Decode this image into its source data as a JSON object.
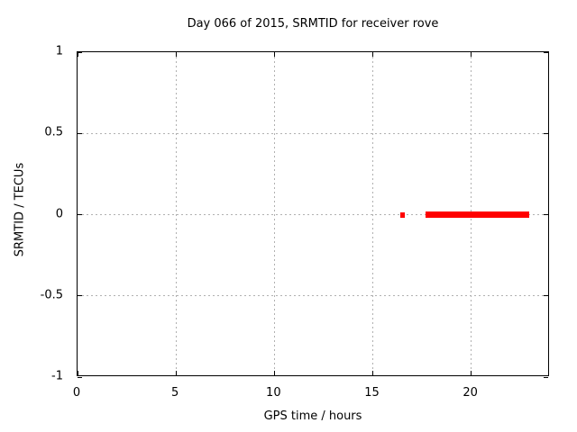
{
  "window": {
    "background": "#ffffff"
  },
  "colors": {
    "data": "#ff0000",
    "grid": "#b0b0b0",
    "axis": "#000000",
    "text": "#000000",
    "background": "#ffffff"
  },
  "chart_data": {
    "type": "scatter",
    "title": "Day 066 of 2015, SRMTID for receiver rove",
    "xlabel": "GPS time / hours",
    "ylabel": "SRMTID / TECUs",
    "xlim": [
      0,
      24
    ],
    "ylim": [
      -1,
      1
    ],
    "grid": true,
    "legend": "none",
    "xticks": [
      {
        "value": 0,
        "label": "0"
      },
      {
        "value": 5,
        "label": "5"
      },
      {
        "value": 10,
        "label": "10"
      },
      {
        "value": 15,
        "label": "15"
      },
      {
        "value": 20,
        "label": "20"
      }
    ],
    "yticks": [
      {
        "value": 1,
        "label": "1"
      },
      {
        "value": 0.5,
        "label": "0.5"
      },
      {
        "value": 0,
        "label": "0"
      },
      {
        "value": -0.5,
        "label": "-0.5"
      },
      {
        "value": -1,
        "label": "-1"
      }
    ],
    "series": [
      {
        "name": "SRMTID",
        "color": "#ff0000",
        "marker": "filled-square",
        "segments": [
          {
            "x_start": 16.4,
            "x_end": 16.65,
            "y": 0.0,
            "thickness_tecu": 0.033
          },
          {
            "x_start": 17.7,
            "x_end": 22.95,
            "y": 0.0,
            "thickness_tecu": 0.039
          }
        ]
      }
    ]
  }
}
